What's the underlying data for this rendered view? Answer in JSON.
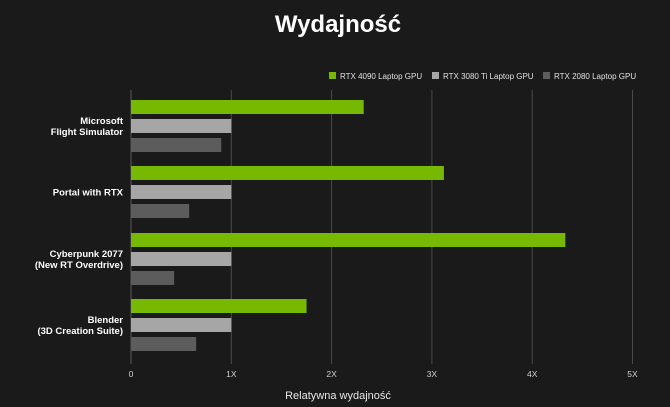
{
  "chart_data": {
    "type": "bar",
    "orientation": "horizontal",
    "title": "Wydajność",
    "xlabel": "Relatywna wydajność",
    "ylabel": "",
    "xlim": [
      0,
      5
    ],
    "ticks": [
      0,
      1,
      2,
      3,
      4,
      5
    ],
    "tick_labels": [
      "0",
      "1X",
      "2X",
      "3X",
      "4X",
      "5X"
    ],
    "grid": true,
    "legend_position": "top-right",
    "categories": [
      [
        "Microsoft",
        "Flight Simulator"
      ],
      [
        "Portal with RTX"
      ],
      [
        "Cyberpunk 2077",
        "(New RT Overdrive)"
      ],
      [
        "Blender",
        "(3D Creation Suite)"
      ]
    ],
    "series": [
      {
        "name": "RTX 4090 Laptop GPU",
        "color": "#76b900",
        "values": [
          2.32,
          3.12,
          4.33,
          1.75
        ]
      },
      {
        "name": "RTX 3080 Ti Laptop GPU",
        "color": "#a6a6a6",
        "values": [
          1.0,
          1.0,
          1.0,
          1.0
        ]
      },
      {
        "name": "RTX 2080 Laptop GPU",
        "color": "#5c5c5c",
        "values": [
          0.9,
          0.58,
          0.43,
          0.65
        ]
      }
    ]
  }
}
